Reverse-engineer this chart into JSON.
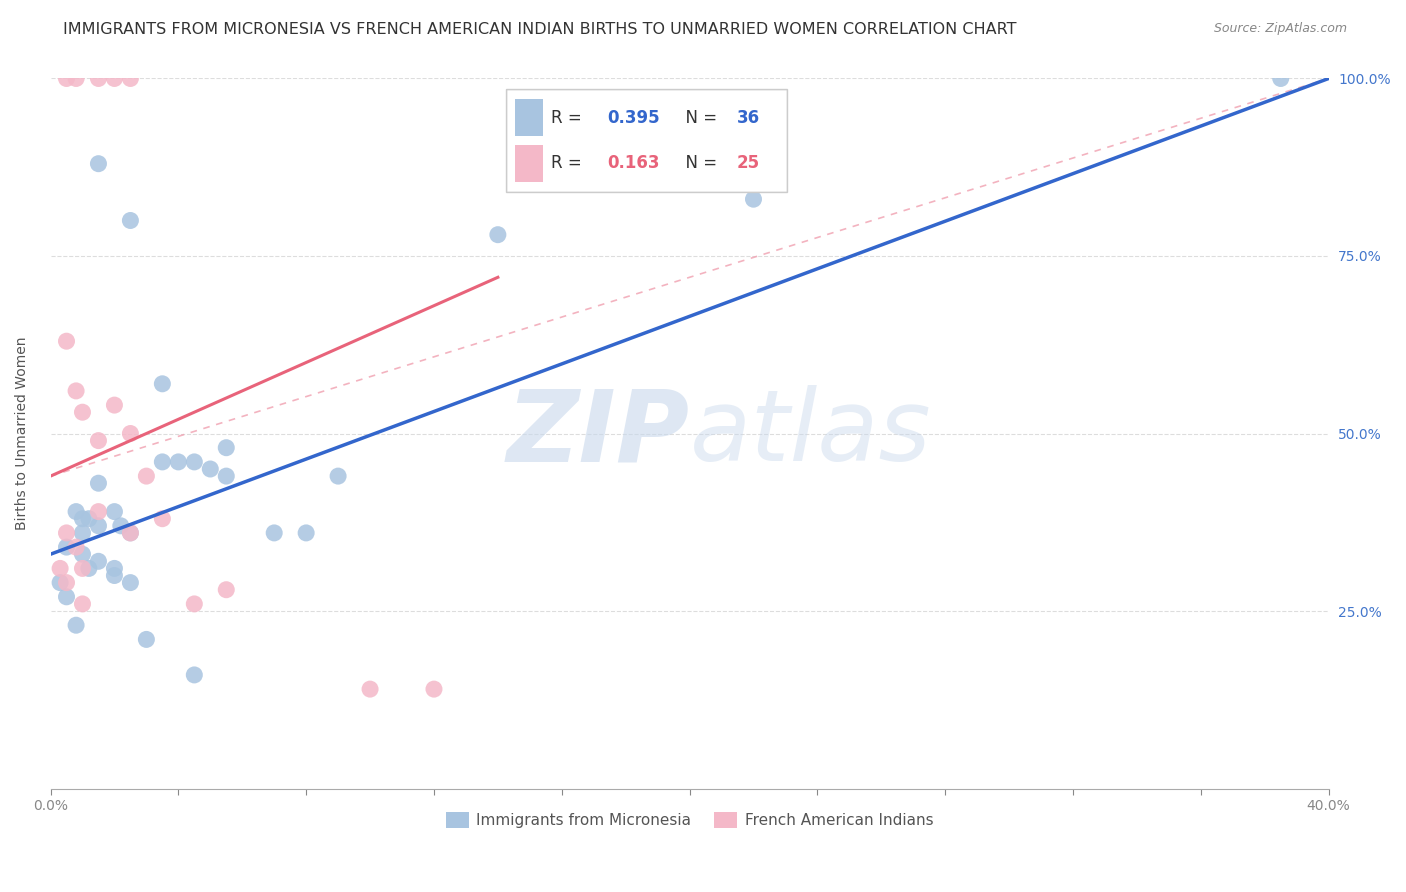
{
  "title": "IMMIGRANTS FROM MICRONESIA VS FRENCH AMERICAN INDIAN BIRTHS TO UNMARRIED WOMEN CORRELATION CHART",
  "source": "Source: ZipAtlas.com",
  "ylabel": "Births to Unmarried Women",
  "xlim": [
    0.0,
    40.0
  ],
  "ylim": [
    0.0,
    100.0
  ],
  "xtick_positions": [
    0.0,
    40.0
  ],
  "xtick_labels": [
    "0.0%",
    "40.0%"
  ],
  "yticks_right": [
    25.0,
    50.0,
    75.0,
    100.0
  ],
  "legend_series_blue": "Immigrants from Micronesia",
  "legend_series_pink": "French American Indians",
  "blue_color": "#A8C4E0",
  "pink_color": "#F4B8C8",
  "blue_line_color": "#3366CC",
  "pink_line_color": "#E8637A",
  "pink_dash_color": "#F0A0B0",
  "blue_scatter_x": [
    1.5,
    2.5,
    3.5,
    4.5,
    5.5,
    0.8,
    1.0,
    1.2,
    1.5,
    2.0,
    2.2,
    2.5,
    0.5,
    1.0,
    1.2,
    1.5,
    2.0,
    2.5,
    3.5,
    4.0,
    5.0,
    5.5,
    7.0,
    8.0,
    9.0,
    22.0,
    0.3,
    0.5,
    0.8,
    1.0,
    1.5,
    2.0,
    3.0,
    4.5,
    14.0,
    38.5
  ],
  "blue_scatter_y": [
    88.0,
    80.0,
    57.0,
    46.0,
    48.0,
    39.0,
    36.0,
    38.0,
    43.0,
    39.0,
    37.0,
    36.0,
    34.0,
    33.0,
    31.0,
    32.0,
    31.0,
    29.0,
    46.0,
    46.0,
    45.0,
    44.0,
    36.0,
    36.0,
    44.0,
    83.0,
    29.0,
    27.0,
    23.0,
    38.0,
    37.0,
    30.0,
    21.0,
    16.0,
    78.0,
    100.0
  ],
  "pink_scatter_x": [
    0.5,
    0.8,
    1.5,
    2.0,
    2.5,
    0.5,
    0.8,
    1.0,
    1.5,
    2.0,
    2.5,
    3.0,
    3.5,
    0.5,
    0.8,
    1.0,
    1.5,
    2.5,
    4.5,
    5.5,
    0.3,
    0.5,
    1.0,
    10.0,
    12.0
  ],
  "pink_scatter_y": [
    100.0,
    100.0,
    100.0,
    100.0,
    100.0,
    63.0,
    56.0,
    53.0,
    49.0,
    54.0,
    50.0,
    44.0,
    38.0,
    36.0,
    34.0,
    31.0,
    39.0,
    36.0,
    26.0,
    28.0,
    31.0,
    29.0,
    26.0,
    14.0,
    14.0
  ],
  "blue_line_x": [
    0.0,
    40.0
  ],
  "blue_line_y": [
    33.0,
    100.0
  ],
  "pink_solid_line_x": [
    0.0,
    14.0
  ],
  "pink_solid_line_y": [
    44.0,
    72.0
  ],
  "pink_dash_line_x": [
    0.0,
    40.0
  ],
  "pink_dash_line_y": [
    44.0,
    100.0
  ],
  "watermark_zip": "ZIP",
  "watermark_atlas": "atlas",
  "background_color": "#FFFFFF",
  "grid_color": "#DDDDDD",
  "title_color": "#333333",
  "title_fontsize": 11.5,
  "axis_label_fontsize": 10,
  "right_tick_color": "#4477CC"
}
